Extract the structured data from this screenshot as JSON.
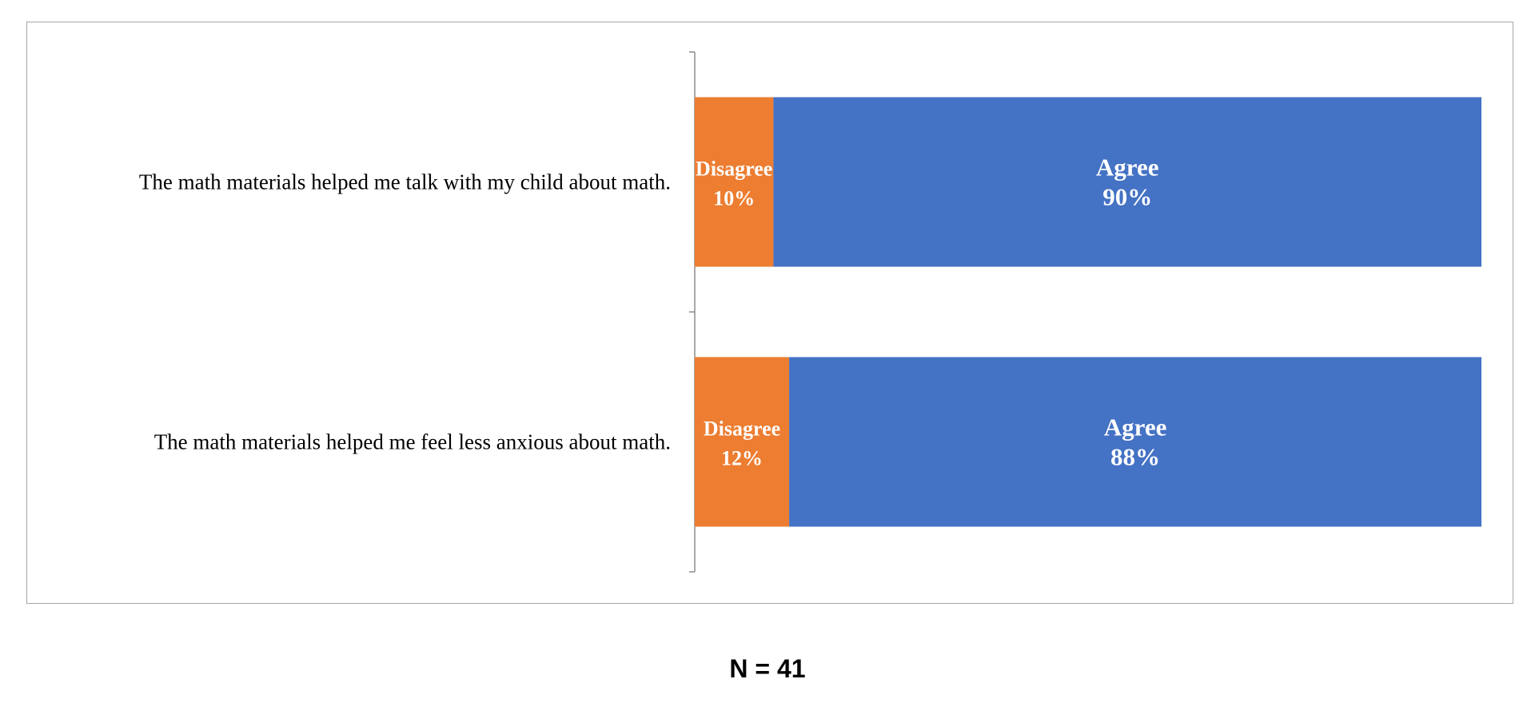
{
  "chart_data": {
    "type": "bar",
    "orientation": "horizontal",
    "stacked": true,
    "normalized_percent": true,
    "categories": [
      "The math materials helped me talk with my child about math.",
      "The math materials helped me feel less anxious about math."
    ],
    "series": [
      {
        "name": "Disagree",
        "values": [
          10,
          12
        ],
        "color": "#ED7D31"
      },
      {
        "name": "Agree",
        "values": [
          90,
          88
        ],
        "color": "#4472C4"
      }
    ],
    "xlim": [
      0,
      100
    ],
    "value_suffix": "%",
    "grid": false,
    "legend": "none",
    "title": "",
    "xlabel": "",
    "ylabel": ""
  },
  "footer": {
    "n_label": "N = 41"
  }
}
